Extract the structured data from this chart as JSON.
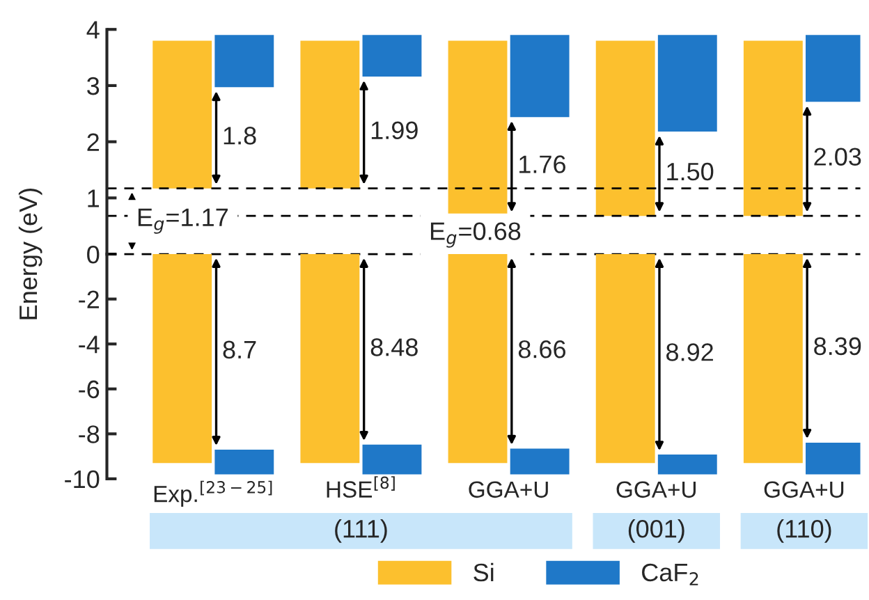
{
  "chart_data": [
    {
      "type": "bar",
      "tick_labels": "y",
      "categories": [
        null,
        null,
        null,
        null,
        null
      ],
      "series": [
        {
          "color": "#fcc02e",
          "base": [
            1.17,
            1.17,
            0.68,
            0.68,
            0.68
          ],
          "values": [
            2.63,
            2.63,
            3.12,
            3.12,
            3.12
          ]
        },
        {
          "color": "#1f78c8",
          "base": [
            2.97,
            3.16,
            2.44,
            2.18,
            2.71
          ],
          "values": [
            0.93,
            0.74,
            1.46,
            1.72,
            1.19
          ]
        }
      ],
      "ylim": [
        0,
        4
      ],
      "yticks": [
        0,
        1,
        2,
        3,
        4
      ],
      "ref_lines": [
        {
          "axis": "y",
          "value": 0,
          "line_style": "dashed"
        },
        {
          "axis": "y",
          "value": 1.17,
          "label": "E$_{g}$=1.17",
          "line_style": "dashed"
        },
        {
          "axis": "y",
          "value": 0.68,
          "label": "E$_{g}$=0.68",
          "line_style": "dashed"
        }
      ],
      "annotations": [
        "1.8",
        "1.99",
        "1.76",
        "1.50",
        "2.03"
      ]
    },
    {
      "type": "bar",
      "ylabel": "Energy (eV)",
      "categories": [
        "Exp.$^{[23−25]}$",
        "HSE$^{[8]}$",
        "GGA+U",
        "GGA+U",
        "GGA+U"
      ],
      "series": [
        {
          "name": "Si",
          "color": "#fcc02e",
          "base": [
            0,
            0,
            0,
            0,
            0
          ],
          "values": [
            -9.3,
            -9.3,
            -9.3,
            -9.3,
            -9.3
          ]
        },
        {
          "name": "CaF$_{2}$",
          "color": "#1f78c8",
          "base": [
            -9.8,
            -9.8,
            -9.8,
            -9.8,
            -9.8
          ],
          "values": [
            1.1,
            1.32,
            1.14,
            0.88,
            1.41
          ]
        }
      ],
      "ylim": [
        -10,
        0
      ],
      "yticks": [
        -10,
        -8,
        -6,
        -4,
        -2
      ],
      "annotations": [
        "8.7",
        "8.48",
        "8.66",
        "8.92",
        "8.39",
        "(111)",
        "(001)",
        "(110)"
      ],
      "legend": "bottom"
    }
  ]
}
